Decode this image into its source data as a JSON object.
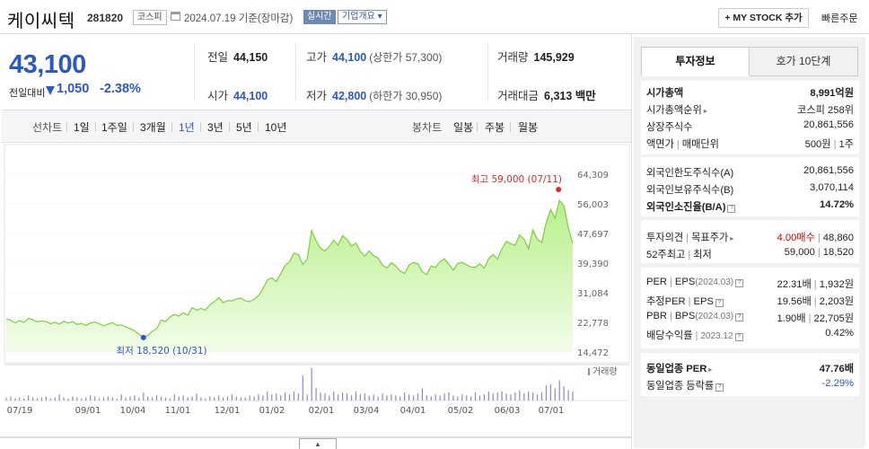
{
  "header": {
    "name": "케이씨텍",
    "code": "281820",
    "market": "코스피",
    "date_text": "2024.07.19  기준(장마감)",
    "realtime": "실시간",
    "overview": "기업개요 ▾",
    "mystock": "+ MY STOCK 추가",
    "quick_order": "빠른주문"
  },
  "price": {
    "current": "43,100",
    "change_label": "전일대비",
    "change": "1,050",
    "change_pct": "-2.38%",
    "prev_close_label": "전일",
    "prev_close": "44,150",
    "high_label": "고가",
    "high": "44,100",
    "upper_limit": "(상한가 57,300)",
    "volume_label": "거래량",
    "volume": "145,929",
    "open_label": "시가",
    "open": "44,100",
    "low_label": "저가",
    "low": "42,800",
    "lower_limit": "(하한가 30,950)",
    "amount_label": "거래대금",
    "amount": "6,313 백만"
  },
  "periods": {
    "line_title": "선차트",
    "line_items": [
      "1일",
      "1주일",
      "3개월",
      "1년",
      "3년",
      "5년",
      "10년"
    ],
    "selected": "1년",
    "candle_title": "봉차트",
    "candle_items": [
      "일봉",
      "주봉",
      "월봉"
    ]
  },
  "chart_data": {
    "type": "area",
    "y_ticks": [
      "64,309",
      "56,003",
      "47,697",
      "39,390",
      "31,084",
      "22,778",
      "14,472"
    ],
    "ylim": [
      14472,
      64309
    ],
    "x_ticks": [
      "07/19",
      "09/01",
      "10/04",
      "11/01",
      "12/01",
      "01/02",
      "02/01",
      "03/04",
      "04/01",
      "05/02",
      "06/03",
      "07/01"
    ],
    "max_label": "최고 59,000 (07/11)",
    "min_label": "최저 18,520 (10/31)",
    "volume_label": "거래량",
    "series": [
      {
        "values": [
          23700,
          23400,
          22600,
          23300,
          22800,
          23900,
          23500,
          22900,
          23200,
          23000,
          22400,
          22800,
          22300,
          23100,
          22600,
          23000,
          22200,
          22500,
          21900,
          22600,
          22900,
          22400,
          21800,
          22300,
          22700,
          21900,
          22100,
          21500,
          21000,
          20400,
          19400,
          18520,
          19100,
          20300,
          21000,
          23400,
          23000,
          24300,
          25000,
          24600,
          25500,
          24800,
          26900,
          26200,
          26700,
          26200,
          27700,
          28600,
          29700,
          28300,
          28900,
          28800,
          29300,
          29600,
          28800,
          28600,
          29200,
          30300,
          32200,
          34700,
          35300,
          34200,
          36400,
          38700,
          39800,
          42200,
          41800,
          39000,
          40500,
          48500,
          45600,
          43600,
          42800,
          44100,
          45800,
          44400,
          47100,
          46000,
          44200,
          45000,
          42700,
          41300,
          42800,
          41500,
          40800,
          38800,
          38000,
          39500,
          38600,
          37200,
          36500,
          38800,
          39600,
          39200,
          37000,
          36200,
          38600,
          38200,
          39800,
          40600,
          39100,
          37400,
          39300,
          39600,
          38900,
          38300,
          38200,
          39200,
          38000,
          40600,
          41800,
          40500,
          43400,
          45500,
          44800,
          44400,
          47300,
          46100,
          43400,
          48700,
          46000,
          45200,
          50700,
          54400,
          52000,
          57000,
          55500,
          49200,
          45000
        ]
      }
    ],
    "volume": [
      3,
      4,
      2,
      3,
      2,
      5,
      3,
      2,
      3,
      4,
      2,
      3,
      6,
      3,
      2,
      4,
      3,
      2,
      3,
      5,
      4,
      2,
      3,
      4,
      3,
      2,
      6,
      3,
      4,
      5,
      3,
      8,
      4,
      3,
      5,
      4,
      3,
      2,
      6,
      4,
      5,
      3,
      4,
      7,
      3,
      2,
      4,
      3,
      5,
      3,
      4,
      6,
      4,
      3,
      3,
      5,
      4,
      6,
      5,
      9,
      6,
      7,
      5,
      8,
      6,
      9,
      7,
      25,
      6,
      32,
      12,
      8,
      7,
      5,
      9,
      6,
      8,
      7,
      5,
      9,
      6,
      7,
      5,
      6,
      4,
      7,
      5,
      6,
      5,
      4,
      8,
      6,
      5,
      7,
      12,
      5,
      4,
      6,
      5,
      7,
      8,
      5,
      4,
      6,
      5,
      4,
      8,
      5,
      6,
      9,
      7,
      8,
      9,
      7,
      6,
      8,
      10,
      7,
      9,
      8,
      6,
      8,
      15,
      16,
      12,
      20,
      14,
      10,
      9
    ]
  },
  "right_panel": {
    "tab_active": "투자정보",
    "tab_inactive": "호가 10단계",
    "market_cap_label": "시가총액",
    "market_cap": "8,991억원",
    "rank_label": "시가총액순위",
    "rank_prefix": "코스피",
    "rank": "258위",
    "shares_label": "상장주식수",
    "shares": "20,861,556",
    "par_label": "액면가",
    "trade_unit_label": "매매단위",
    "par": "500원",
    "trade_unit": "1주",
    "foreign_limit_label": "외국인한도주식수(A)",
    "foreign_limit": "20,861,556",
    "foreign_hold_label": "외국인보유주식수(B)",
    "foreign_hold": "3,070,114",
    "foreign_ratio_label": "외국인소진율(B/A)",
    "foreign_ratio": "14.72%",
    "opinion_label": "투자의견",
    "target_label": "목표주가",
    "opinion": "4.00매수",
    "target": "48,860",
    "w52_high_label": "52주최고",
    "w52_low_label": "최저",
    "w52_high": "59,000",
    "w52_low": "18,520",
    "per_label": "PER",
    "eps_label": "EPS",
    "eps_period": "(2024.03)",
    "per": "22.31배",
    "eps": "1,932원",
    "est_per_label": "추정PER",
    "est_eps_label": "EPS",
    "est_per": "19.56배",
    "est_eps": "2,203원",
    "pbr_label": "PBR",
    "bps_label": "BPS",
    "bps_period": "(2024.03)",
    "pbr": "1.90배",
    "bps": "22,705원",
    "div_label": "배당수익률",
    "div_period": "2023.12",
    "div": "0.42%",
    "sector_per_label": "동일업종 PER",
    "sector_per": "47.76배",
    "sector_chg_label": "동일업종 등락률",
    "sector_chg": "-2.29%"
  }
}
